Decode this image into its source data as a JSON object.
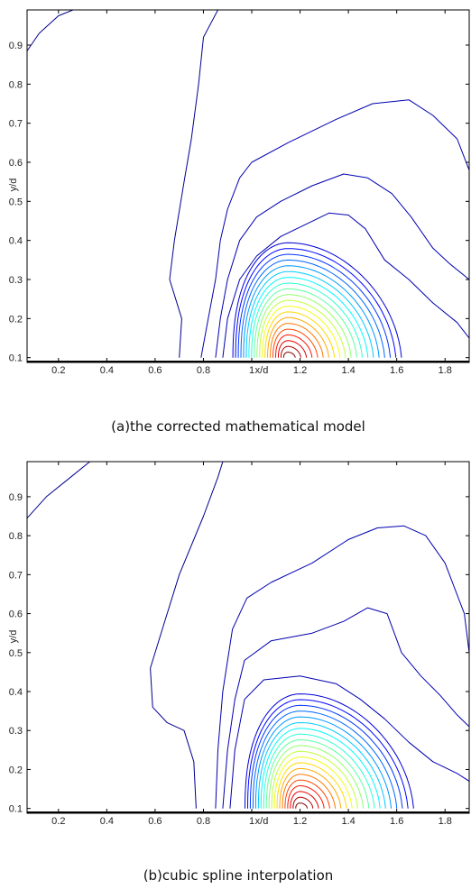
{
  "figures": [
    {
      "caption": "(a)the corrected mathematical model",
      "chart_data": {
        "type": "contour",
        "xlabel": "x/d",
        "ylabel": "y/d",
        "xlim": [
          0.07,
          1.9
        ],
        "ylim": [
          0.09,
          0.99
        ],
        "xticks": [
          0.2,
          0.4,
          0.6,
          0.8,
          1,
          1.2,
          1.4,
          1.6,
          1.8
        ],
        "xtick_labels": [
          "0.2",
          "0.4",
          "0.6",
          "0.8",
          "1",
          "1.2",
          "1.4",
          "1.6",
          "1.8"
        ],
        "yticks": [
          0.1,
          0.2,
          0.3,
          0.4,
          0.5,
          0.6,
          0.7,
          0.8,
          0.9
        ],
        "ytick_labels": [
          "0.1",
          "0.2",
          "0.3",
          "0.4",
          "0.5",
          "0.6",
          "0.7",
          "0.8",
          "0.9"
        ],
        "peak": {
          "x": 1.15,
          "y": 0.1
        },
        "levels": 20,
        "colormap": [
          "#00008f",
          "#0000ff",
          "#0080ff",
          "#00ffff",
          "#80ff80",
          "#ffff00",
          "#ff8000",
          "#ff0000",
          "#800000"
        ],
        "outer_contours": [
          {
            "points": [
              [
                0.07,
                0.885
              ],
              [
                0.12,
                0.93
              ],
              [
                0.2,
                0.975
              ],
              [
                0.26,
                0.99
              ]
            ]
          },
          {
            "points": [
              [
                0.7,
                0.1
              ],
              [
                0.71,
                0.2
              ],
              [
                0.66,
                0.3
              ],
              [
                0.68,
                0.4
              ],
              [
                0.72,
                0.55
              ],
              [
                0.75,
                0.66
              ],
              [
                0.78,
                0.8
              ],
              [
                0.8,
                0.92
              ],
              [
                0.86,
                0.99
              ]
            ]
          },
          {
            "points": [
              [
                0.79,
                0.1
              ],
              [
                0.82,
                0.2
              ],
              [
                0.85,
                0.3
              ],
              [
                0.87,
                0.4
              ],
              [
                0.9,
                0.48
              ],
              [
                0.95,
                0.56
              ],
              [
                1.0,
                0.6
              ],
              [
                1.15,
                0.65
              ],
              [
                1.35,
                0.71
              ],
              [
                1.5,
                0.75
              ],
              [
                1.65,
                0.76
              ],
              [
                1.75,
                0.72
              ],
              [
                1.85,
                0.66
              ],
              [
                1.9,
                0.58
              ]
            ]
          },
          {
            "points": [
              [
                0.85,
                0.1
              ],
              [
                0.87,
                0.2
              ],
              [
                0.9,
                0.3
              ],
              [
                0.95,
                0.4
              ],
              [
                1.02,
                0.46
              ],
              [
                1.12,
                0.5
              ],
              [
                1.25,
                0.54
              ],
              [
                1.38,
                0.57
              ],
              [
                1.48,
                0.56
              ],
              [
                1.58,
                0.52
              ],
              [
                1.66,
                0.46
              ],
              [
                1.75,
                0.38
              ],
              [
                1.82,
                0.34
              ],
              [
                1.9,
                0.3
              ]
            ]
          },
          {
            "points": [
              [
                0.88,
                0.1
              ],
              [
                0.9,
                0.2
              ],
              [
                0.95,
                0.3
              ],
              [
                1.02,
                0.36
              ],
              [
                1.12,
                0.41
              ],
              [
                1.22,
                0.44
              ],
              [
                1.32,
                0.47
              ],
              [
                1.4,
                0.465
              ],
              [
                1.47,
                0.43
              ],
              [
                1.55,
                0.35
              ],
              [
                1.65,
                0.3
              ],
              [
                1.75,
                0.24
              ],
              [
                1.85,
                0.19
              ],
              [
                1.9,
                0.15
              ]
            ]
          }
        ]
      }
    },
    {
      "caption": "(b)cubic spline interpolation",
      "chart_data": {
        "type": "contour",
        "xlabel": "x/d",
        "ylabel": "y/d",
        "xlim": [
          0.07,
          1.9
        ],
        "ylim": [
          0.09,
          0.99
        ],
        "xticks": [
          0.2,
          0.4,
          0.6,
          0.8,
          1,
          1.2,
          1.4,
          1.6,
          1.8
        ],
        "xtick_labels": [
          "0.2",
          "0.4",
          "0.6",
          "0.8",
          "1",
          "1.2",
          "1.4",
          "1.6",
          "1.8"
        ],
        "yticks": [
          0.1,
          0.2,
          0.3,
          0.4,
          0.5,
          0.6,
          0.7,
          0.8,
          0.9
        ],
        "ytick_labels": [
          "0.1",
          "0.2",
          "0.3",
          "0.4",
          "0.5",
          "0.6",
          "0.7",
          "0.8",
          "0.9"
        ],
        "peak": {
          "x": 1.2,
          "y": 0.1
        },
        "levels": 20,
        "colormap": [
          "#00008f",
          "#0000ff",
          "#0080ff",
          "#00ffff",
          "#80ff80",
          "#ffff00",
          "#ff8000",
          "#ff0000",
          "#800000"
        ],
        "outer_contours": [
          {
            "points": [
              [
                0.07,
                0.845
              ],
              [
                0.15,
                0.9
              ],
              [
                0.25,
                0.95
              ],
              [
                0.33,
                0.99
              ]
            ]
          },
          {
            "points": [
              [
                0.77,
                0.1
              ],
              [
                0.76,
                0.22
              ],
              [
                0.72,
                0.3
              ],
              [
                0.65,
                0.32
              ],
              [
                0.59,
                0.36
              ],
              [
                0.58,
                0.46
              ],
              [
                0.63,
                0.56
              ],
              [
                0.7,
                0.7
              ],
              [
                0.8,
                0.85
              ],
              [
                0.86,
                0.95
              ],
              [
                0.88,
                0.99
              ]
            ]
          },
          {
            "points": [
              [
                0.85,
                0.1
              ],
              [
                0.86,
                0.25
              ],
              [
                0.88,
                0.4
              ],
              [
                0.92,
                0.56
              ],
              [
                0.98,
                0.64
              ],
              [
                1.08,
                0.68
              ],
              [
                1.25,
                0.73
              ],
              [
                1.4,
                0.79
              ],
              [
                1.52,
                0.82
              ],
              [
                1.63,
                0.825
              ],
              [
                1.72,
                0.8
              ],
              [
                1.8,
                0.73
              ],
              [
                1.88,
                0.6
              ],
              [
                1.9,
                0.5
              ]
            ]
          },
          {
            "points": [
              [
                0.88,
                0.1
              ],
              [
                0.9,
                0.25
              ],
              [
                0.93,
                0.38
              ],
              [
                0.97,
                0.48
              ],
              [
                1.08,
                0.53
              ],
              [
                1.25,
                0.55
              ],
              [
                1.38,
                0.58
              ],
              [
                1.48,
                0.615
              ],
              [
                1.56,
                0.6
              ],
              [
                1.62,
                0.5
              ],
              [
                1.7,
                0.44
              ],
              [
                1.78,
                0.39
              ],
              [
                1.85,
                0.34
              ],
              [
                1.9,
                0.31
              ]
            ]
          },
          {
            "points": [
              [
                0.91,
                0.1
              ],
              [
                0.93,
                0.25
              ],
              [
                0.97,
                0.38
              ],
              [
                1.05,
                0.43
              ],
              [
                1.2,
                0.44
              ],
              [
                1.35,
                0.42
              ],
              [
                1.45,
                0.38
              ],
              [
                1.55,
                0.33
              ],
              [
                1.65,
                0.27
              ],
              [
                1.75,
                0.22
              ],
              [
                1.85,
                0.19
              ],
              [
                1.9,
                0.17
              ]
            ]
          }
        ]
      }
    }
  ]
}
